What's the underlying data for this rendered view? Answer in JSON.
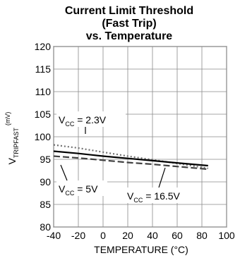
{
  "chart_data": {
    "type": "line",
    "title_lines": [
      "Current Limit Threshold",
      "(Fast Trip)",
      "vs. Temperature"
    ],
    "xlabel": "TEMPERATURE (°C)",
    "ylabel_main": "V",
    "ylabel_sub": "TRIPFAST",
    "ylabel_unit": "(mV)",
    "xlim": [
      -40,
      100
    ],
    "ylim": [
      80,
      120
    ],
    "x_ticks": [
      -40,
      -20,
      0,
      20,
      40,
      60,
      80,
      100
    ],
    "y_ticks": [
      80,
      85,
      90,
      95,
      100,
      105,
      110,
      115,
      120
    ],
    "grid": true,
    "series": [
      {
        "name_main": "V",
        "name_sub": "CC",
        "name_value": " = 2.3V",
        "style": "dotted",
        "color": "#707070",
        "x": [
          -40,
          -20,
          0,
          20,
          40,
          60,
          85
        ],
        "y": [
          98.2,
          97.5,
          96.6,
          95.7,
          94.9,
          94.1,
          93.0
        ]
      },
      {
        "name_main": "V",
        "name_sub": "CC",
        "name_value": " = 5V",
        "style": "solid",
        "color": "#000000",
        "x": [
          -40,
          -20,
          0,
          20,
          40,
          60,
          85
        ],
        "y": [
          96.8,
          96.3,
          95.7,
          95.2,
          94.7,
          94.2,
          93.6
        ]
      },
      {
        "name_main": "V",
        "name_sub": "CC",
        "name_value": " = 16.5V",
        "style": "dashed",
        "color": "#404040",
        "x": [
          -40,
          -20,
          0,
          20,
          40,
          60,
          85
        ],
        "y": [
          95.7,
          95.3,
          94.8,
          94.3,
          93.9,
          93.4,
          92.8
        ]
      }
    ]
  }
}
